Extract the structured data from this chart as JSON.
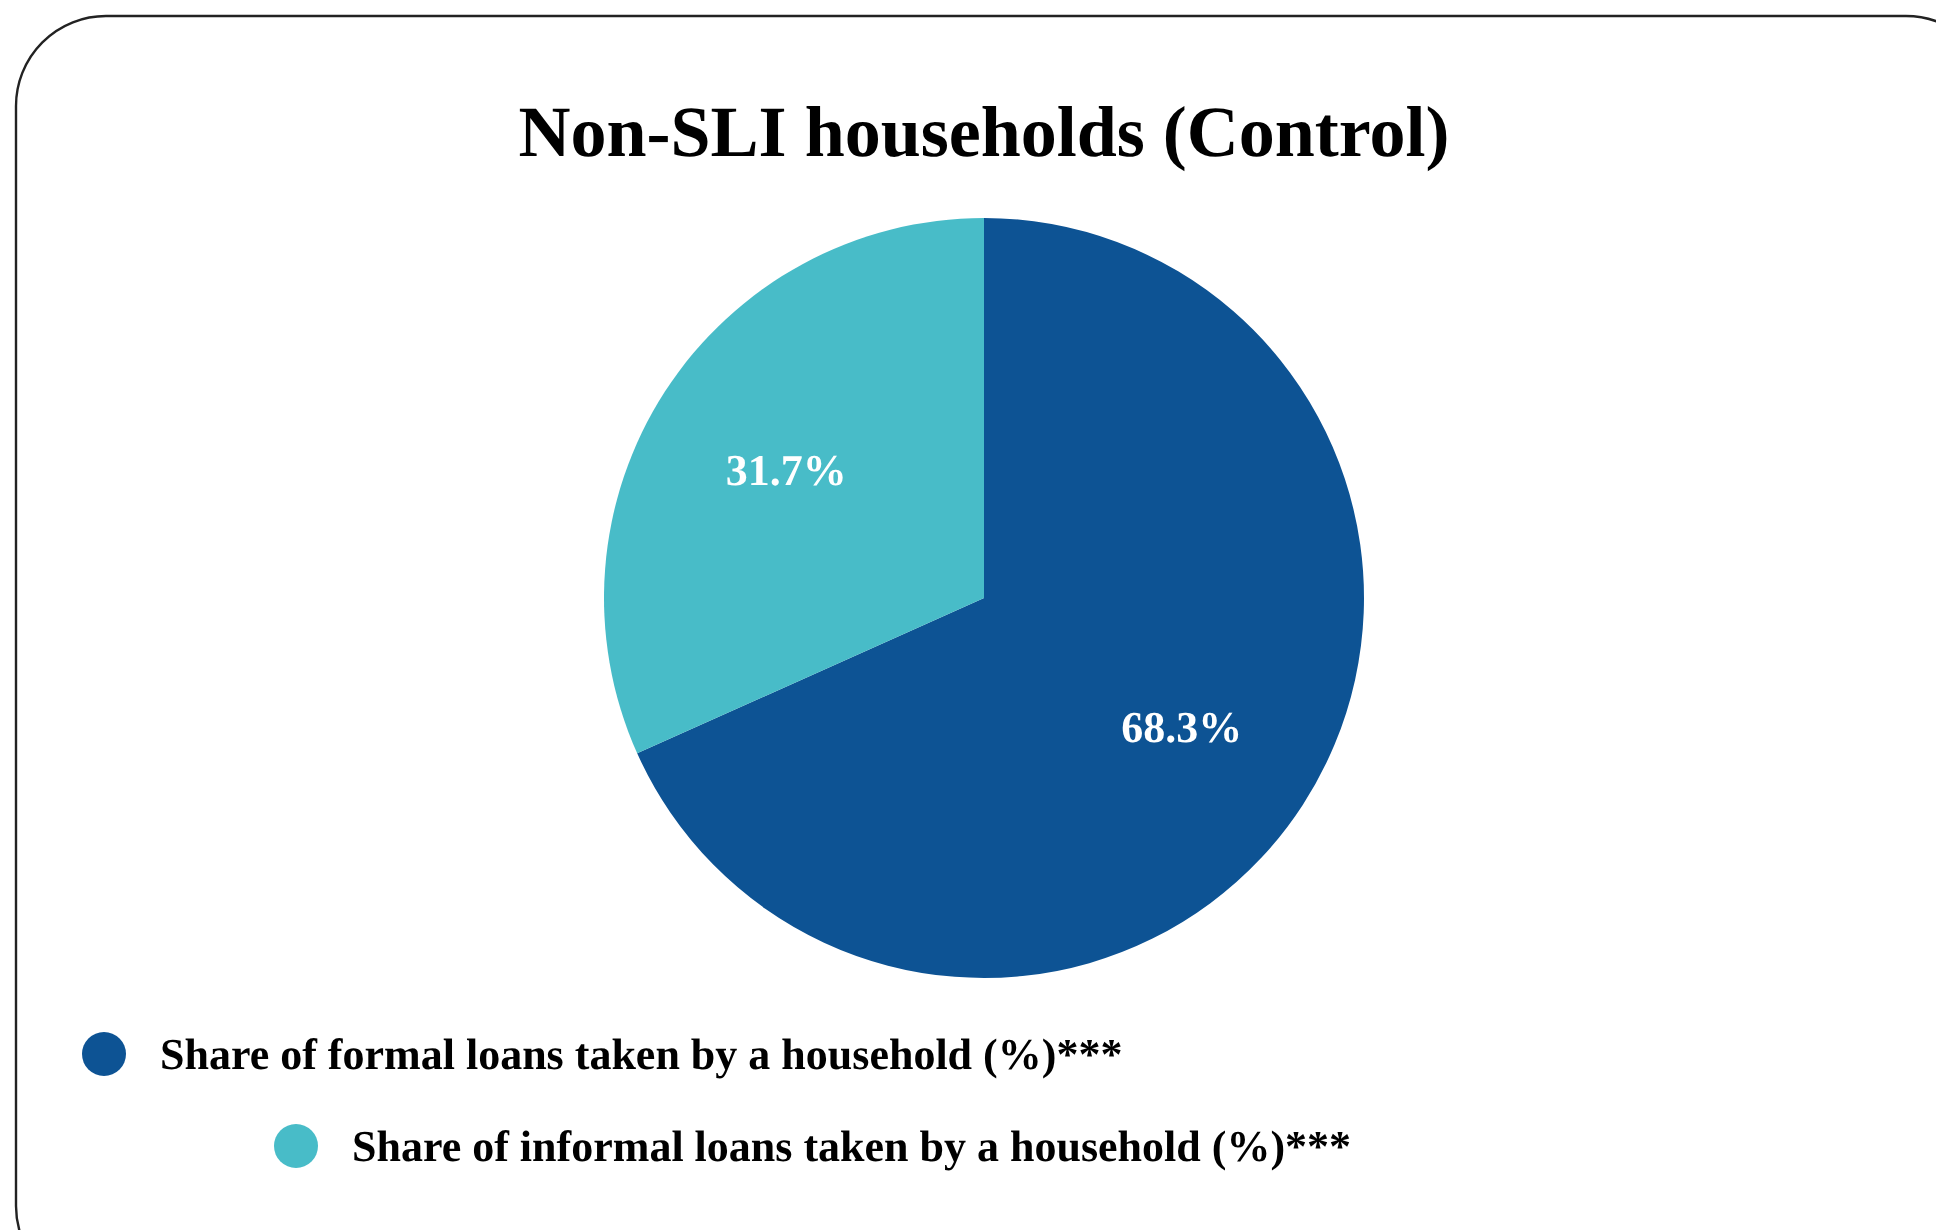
{
  "chart_data": {
    "type": "pie",
    "title": "Non-SLI households (Control)",
    "categories": [
      "Share of formal loans taken by a household (%)***",
      "Share of informal loans taken by a household (%)***"
    ],
    "values": [
      68.3,
      31.7
    ],
    "colors": [
      "#0d5394",
      "#48bcc8"
    ],
    "value_labels": [
      "68.3%",
      "31.7%"
    ],
    "legend": "bottom"
  }
}
